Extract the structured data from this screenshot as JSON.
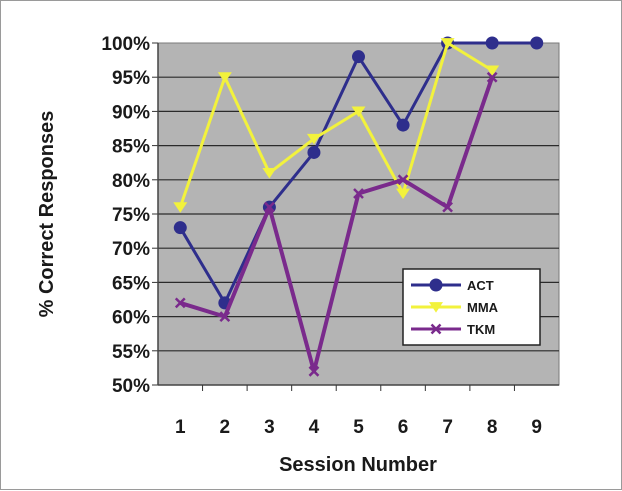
{
  "chart_data": {
    "type": "line",
    "title": "",
    "xlabel": "Session Number",
    "ylabel": "% Correct Responses",
    "x": [
      1,
      2,
      3,
      4,
      5,
      6,
      7,
      8,
      9
    ],
    "ylim": [
      50,
      100
    ],
    "y_ticks": [
      "50%",
      "55%",
      "60%",
      "65%",
      "70%",
      "75%",
      "80%",
      "85%",
      "90%",
      "95%",
      "100%"
    ],
    "grid": true,
    "legend_position": "bottom-right",
    "plot_background": "#b4b4b4",
    "series": [
      {
        "name": "ACT",
        "color": "#2e2e8c",
        "marker": "circle",
        "values": [
          73,
          62,
          76,
          84,
          98,
          88,
          100,
          100,
          100
        ]
      },
      {
        "name": "MMA",
        "color": "#f2f23c",
        "marker": "triangle",
        "values": [
          76,
          95,
          81,
          86,
          90,
          78,
          100,
          96,
          null
        ]
      },
      {
        "name": "TKM",
        "color": "#7a2a8c",
        "marker": "cross",
        "values": [
          62,
          60,
          76,
          52,
          78,
          80,
          76,
          95,
          null
        ]
      }
    ]
  }
}
